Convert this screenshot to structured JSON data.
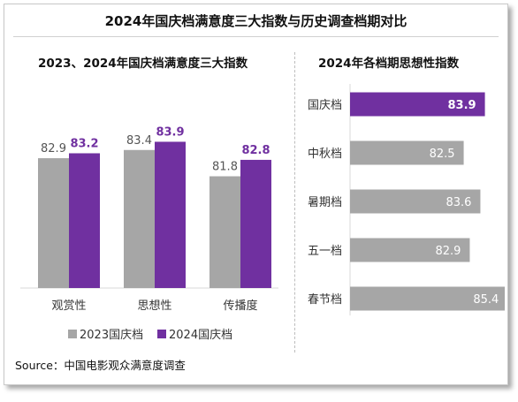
{
  "title": "2024年国庆档满意度三大指数与历史调查档期对比",
  "source": "Source：中国电影观众满意度调查",
  "colors": {
    "series_2023": "#a6a6a6",
    "series_2024": "#7030a0",
    "bar_default": "#a6a6a6",
    "bar_highlight": "#7030a0"
  },
  "chart_data": [
    {
      "type": "bar",
      "title": "2023、2024年国庆档满意度三大指数",
      "categories": [
        "观赏性",
        "思想性",
        "传播度"
      ],
      "series": [
        {
          "name": "2023国庆档",
          "values": [
            82.9,
            83.4,
            81.8
          ]
        },
        {
          "name": "2024国庆档",
          "values": [
            83.2,
            83.9,
            82.8
          ]
        }
      ],
      "ylim": [
        75,
        85
      ],
      "legend": "bottom",
      "grid": false
    },
    {
      "type": "bar",
      "orientation": "horizontal",
      "title": "2024年各档期思想性指数",
      "categories": [
        "国庆档",
        "中秋档",
        "暑期档",
        "五一档",
        "春节档"
      ],
      "values": [
        83.9,
        82.5,
        83.6,
        82.9,
        85.4
      ],
      "highlight": "国庆档",
      "xlim": [
        75,
        85.5
      ],
      "grid": false
    }
  ]
}
